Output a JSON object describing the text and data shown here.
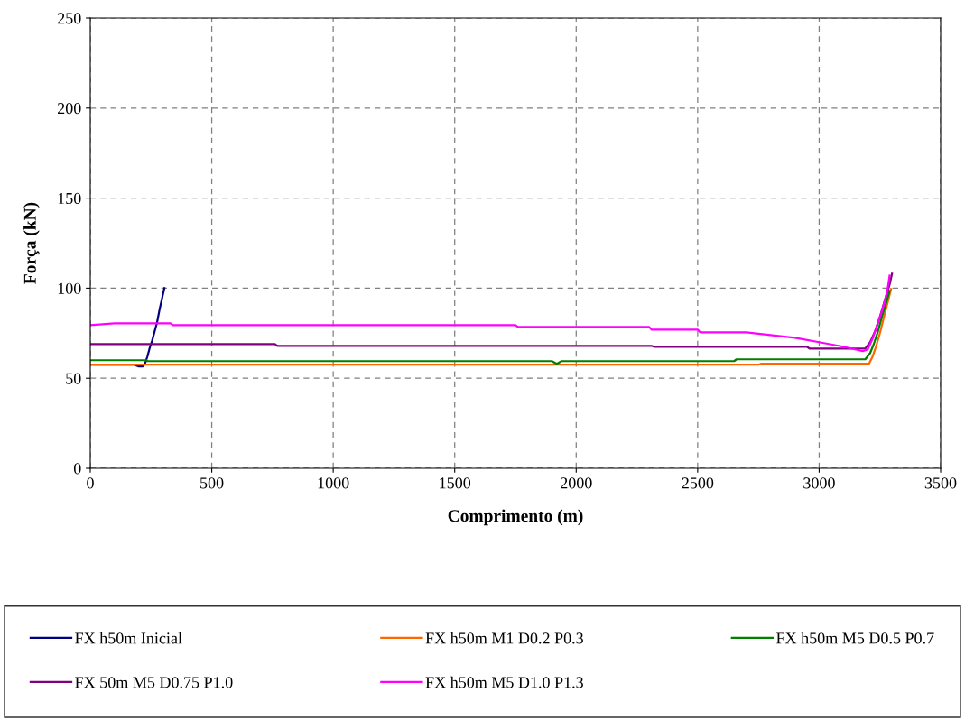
{
  "chart_data": {
    "type": "line",
    "xlabel": "Comprimento (m)",
    "ylabel": "Força (kN)",
    "xlim": [
      0,
      3500
    ],
    "ylim": [
      0,
      250
    ],
    "xticks": [
      0,
      500,
      1000,
      1500,
      2000,
      2500,
      3000,
      3500
    ],
    "yticks": [
      0,
      50,
      100,
      150,
      200,
      250
    ],
    "grid": true,
    "legend": "bottom",
    "marker": "none",
    "line_style": "solid",
    "series": [
      {
        "name": "FX h50m Inicial",
        "color": "#000080",
        "x": [
          0,
          180,
          200,
          215,
          225,
          235,
          245,
          255,
          265,
          275,
          285,
          295,
          305
        ],
        "values": [
          57.5,
          57.5,
          56.5,
          56.5,
          58,
          62,
          67,
          71,
          76,
          81,
          88,
          94,
          100
        ]
      },
      {
        "name": "FX h50m M1 D0.2 P0.3",
        "color": "#ff6600",
        "x": [
          0,
          2750,
          2760,
          3205,
          3220,
          3235,
          3250,
          3265,
          3280,
          3296
        ],
        "values": [
          57.5,
          57.5,
          58,
          58,
          62,
          68,
          75,
          83,
          91,
          99.5
        ]
      },
      {
        "name": "FX h50m M5 D0.5 P0.7",
        "color": "#008000",
        "x": [
          0,
          230,
          235,
          1900,
          1920,
          1940,
          2650,
          2660,
          3190,
          3210,
          3225,
          3242,
          3258,
          3274,
          3290
        ],
        "values": [
          60,
          60,
          59.5,
          59.5,
          58,
          59.5,
          59.5,
          60.5,
          60.5,
          64,
          69,
          76,
          84,
          91,
          98.5
        ]
      },
      {
        "name": "FX 50m M5 D0.75 P1.0",
        "color": "#800080",
        "x": [
          0,
          760,
          770,
          2310,
          2320,
          2950,
          2960,
          3190,
          3210,
          3230,
          3250,
          3270,
          3290,
          3300
        ],
        "values": [
          69,
          69,
          68,
          68,
          67.5,
          67.5,
          66.5,
          66.5,
          70,
          76,
          84,
          93,
          102,
          108
        ]
      },
      {
        "name": "FX h50m M5 D1.0 P1.3",
        "color": "#ff00ff",
        "x": [
          0,
          100,
          330,
          340,
          1750,
          1760,
          2300,
          2310,
          2500,
          2510,
          2700,
          2800,
          2900,
          3000,
          3100,
          3180,
          3200,
          3220,
          3240,
          3260,
          3280,
          3290
        ],
        "values": [
          79.5,
          80.5,
          80.5,
          79.5,
          79.5,
          78.5,
          78.5,
          77,
          77,
          75.5,
          75.5,
          74,
          72.5,
          70,
          67.5,
          65,
          66,
          72,
          80,
          88,
          98,
          107
        ]
      }
    ]
  }
}
